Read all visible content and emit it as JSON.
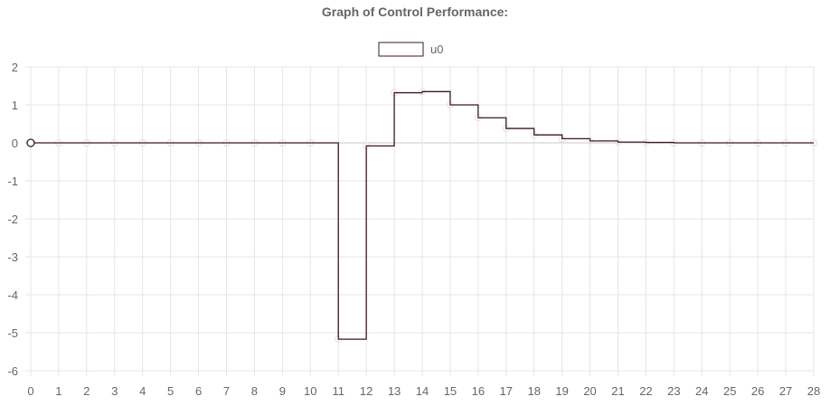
{
  "chart_data": {
    "type": "line",
    "title": "Graph of Control Performance:",
    "xlabel": "",
    "ylabel": "",
    "x": [
      0,
      1,
      2,
      3,
      4,
      5,
      6,
      7,
      8,
      9,
      10,
      11,
      12,
      13,
      14,
      15,
      16,
      17,
      18,
      19,
      20,
      21,
      22,
      23,
      24,
      25,
      26,
      27,
      28
    ],
    "series": [
      {
        "name": "u0",
        "step": "after",
        "values": [
          0,
          0,
          0,
          0,
          0,
          0,
          0,
          0,
          0,
          0,
          0,
          -5.17,
          -0.08,
          1.32,
          1.35,
          1.0,
          0.66,
          0.38,
          0.21,
          0.11,
          0.05,
          0.02,
          0.01,
          0,
          0,
          0,
          0,
          0,
          0
        ],
        "line_color": "#3b1a1a",
        "point_color": "#f0dede"
      }
    ],
    "xlim": [
      0,
      28
    ],
    "ylim": [
      -6,
      2
    ],
    "y_ticks": [
      2,
      1,
      0,
      -1,
      -2,
      -3,
      -4,
      -5,
      -6
    ],
    "x_ticks": [
      0,
      1,
      2,
      3,
      4,
      5,
      6,
      7,
      8,
      9,
      10,
      11,
      12,
      13,
      14,
      15,
      16,
      17,
      18,
      19,
      20,
      21,
      22,
      23,
      24,
      25,
      26,
      27,
      28
    ],
    "grid": true,
    "legend_position": "top-center",
    "grid_color": "#e5e5e5",
    "zero_line_color": "#c8c8c8"
  }
}
